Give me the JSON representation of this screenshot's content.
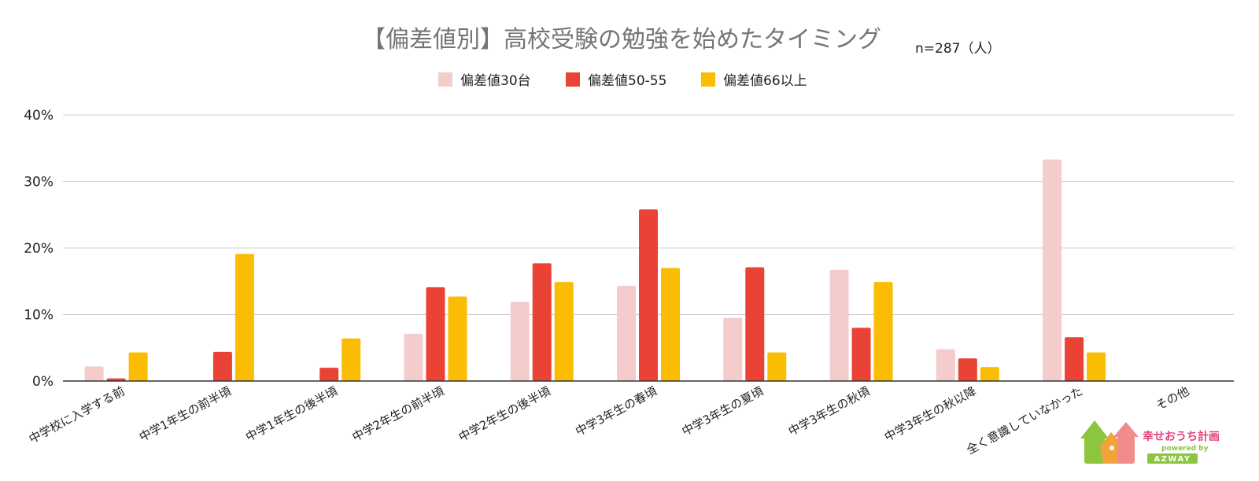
{
  "chart_data": {
    "type": "bar",
    "title": "【偏差値別】高校受験の勉強を始めたタイミング",
    "subtitle": "n=287（人）",
    "xlabel": "",
    "ylabel": "",
    "ylim": [
      0,
      40
    ],
    "yticks": [
      0,
      10,
      20,
      30,
      40
    ],
    "ytick_labels": [
      "0%",
      "10%",
      "20%",
      "30%",
      "40%"
    ],
    "grid": true,
    "legend_position": "top-center",
    "categories": [
      "中学校に入学する前",
      "中学1年生の前半頃",
      "中学1年生の後半頃",
      "中学2年生の前半頃",
      "中学2年生の後半頃",
      "中学3年生の春頃",
      "中学3年生の夏頃",
      "中学3年生の秋頃",
      "中学3年生の秋以降",
      "全く意識していなかった",
      "その他"
    ],
    "series": [
      {
        "name": "偏差値30台",
        "color": "#f4cccc",
        "values": [
          2.2,
          0,
          0,
          7.1,
          11.9,
          14.3,
          9.5,
          16.7,
          4.8,
          33.3,
          0
        ]
      },
      {
        "name": "偏差値50-55",
        "color": "#ea4335",
        "values": [
          0.4,
          4.4,
          2.0,
          14.1,
          17.7,
          25.8,
          17.1,
          8.0,
          3.4,
          6.6,
          0
        ]
      },
      {
        "name": "偏差値66以上",
        "color": "#fbbc04",
        "values": [
          4.3,
          19.1,
          6.4,
          12.7,
          14.9,
          17.0,
          4.3,
          14.9,
          2.1,
          4.3,
          0
        ]
      }
    ]
  },
  "logo": {
    "name": "幸せおうち計画",
    "tagline": "powered by",
    "brand": "AZWAY",
    "colors": {
      "green": "#8cc63f",
      "orange": "#f4a23c",
      "pink": "#f08c8c",
      "text": "#e8407a",
      "badge": "#8cc63f"
    }
  }
}
